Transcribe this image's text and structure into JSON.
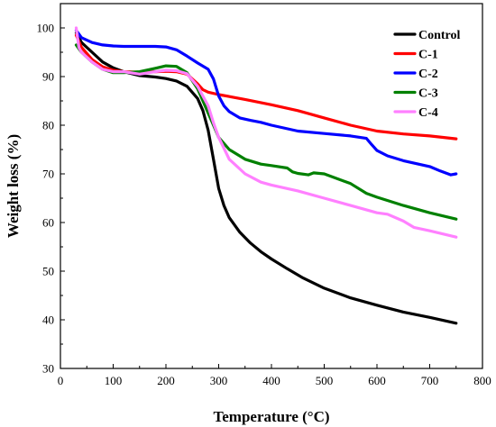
{
  "chart_data": {
    "type": "line",
    "xlabel": "Temperature (°C)",
    "ylabel": "Weight loss (%)",
    "xlim": [
      0,
      800
    ],
    "ylim": [
      30,
      105
    ],
    "xticks": [
      0,
      100,
      200,
      300,
      400,
      500,
      600,
      700,
      800
    ],
    "yticks": [
      30,
      40,
      50,
      60,
      70,
      80,
      90,
      100
    ],
    "grid": false,
    "legend": "top-right",
    "series": [
      {
        "name": "Control",
        "color": "#000000",
        "x": [
          30,
          40,
          60,
          80,
          100,
          120,
          150,
          180,
          200,
          220,
          240,
          260,
          270,
          280,
          290,
          300,
          310,
          320,
          340,
          360,
          380,
          400,
          430,
          460,
          500,
          550,
          600,
          650,
          700,
          750
        ],
        "y": [
          99,
          97,
          95,
          93,
          91.8,
          91,
          90.2,
          89.9,
          89.6,
          89.1,
          88,
          85.5,
          83,
          79,
          73,
          67,
          63.5,
          61,
          58,
          55.8,
          54,
          52.5,
          50.5,
          48.6,
          46.5,
          44.5,
          43,
          41.6,
          40.5,
          39.3
        ]
      },
      {
        "name": "C-1",
        "color": "#ff0000",
        "x": [
          30,
          40,
          60,
          80,
          100,
          120,
          150,
          180,
          200,
          220,
          240,
          260,
          270,
          280,
          300,
          350,
          400,
          450,
          500,
          550,
          600,
          650,
          700,
          750
        ],
        "y": [
          98.5,
          96,
          93.5,
          92,
          91.3,
          91,
          90.9,
          91,
          91.1,
          91,
          90.5,
          88.5,
          87.3,
          86.8,
          86.3,
          85.3,
          84.2,
          83,
          81.5,
          80,
          78.8,
          78.2,
          77.8,
          77.2
        ]
      },
      {
        "name": "C-2",
        "color": "#0000ff",
        "x": [
          30,
          40,
          60,
          80,
          100,
          120,
          150,
          180,
          200,
          220,
          240,
          260,
          280,
          290,
          300,
          310,
          320,
          340,
          360,
          380,
          400,
          450,
          500,
          550,
          580,
          590,
          600,
          620,
          650,
          700,
          720,
          740,
          750
        ],
        "y": [
          99.5,
          98,
          97,
          96.5,
          96.3,
          96.2,
          96.2,
          96.2,
          96.1,
          95.5,
          94.2,
          92.8,
          91.5,
          89.5,
          86,
          84,
          82.8,
          81.5,
          81,
          80.6,
          80,
          78.8,
          78.3,
          77.8,
          77.3,
          76,
          74.8,
          73.7,
          72.7,
          71.5,
          70.6,
          69.8,
          70
        ]
      },
      {
        "name": "C-3",
        "color": "#008000",
        "x": [
          30,
          40,
          60,
          80,
          100,
          120,
          150,
          180,
          200,
          220,
          240,
          260,
          270,
          280,
          290,
          300,
          320,
          350,
          380,
          400,
          430,
          440,
          450,
          470,
          480,
          500,
          550,
          580,
          600,
          650,
          700,
          750
        ],
        "y": [
          96.5,
          95,
          93,
          91.5,
          90.8,
          90.8,
          91,
          91.7,
          92.2,
          92.1,
          90.8,
          87.5,
          85,
          82.5,
          80,
          77.5,
          75,
          73,
          72,
          71.7,
          71.2,
          70.4,
          70.1,
          69.8,
          70.2,
          70,
          68,
          66,
          65.2,
          63.5,
          62,
          60.7
        ]
      },
      {
        "name": "C-4",
        "color": "#ff80ff",
        "x": [
          30,
          35,
          40,
          60,
          80,
          100,
          120,
          150,
          180,
          200,
          220,
          240,
          260,
          280,
          290,
          300,
          320,
          350,
          380,
          400,
          450,
          500,
          550,
          600,
          620,
          650,
          670,
          700,
          750
        ],
        "y": [
          100,
          96,
          95,
          93,
          91.5,
          91,
          91,
          90.5,
          91,
          91.3,
          91.2,
          90.6,
          88,
          84,
          80.5,
          77.5,
          73,
          70,
          68.3,
          67.7,
          66.5,
          65,
          63.5,
          62,
          61.7,
          60.3,
          59,
          58.3,
          57
        ]
      }
    ]
  }
}
